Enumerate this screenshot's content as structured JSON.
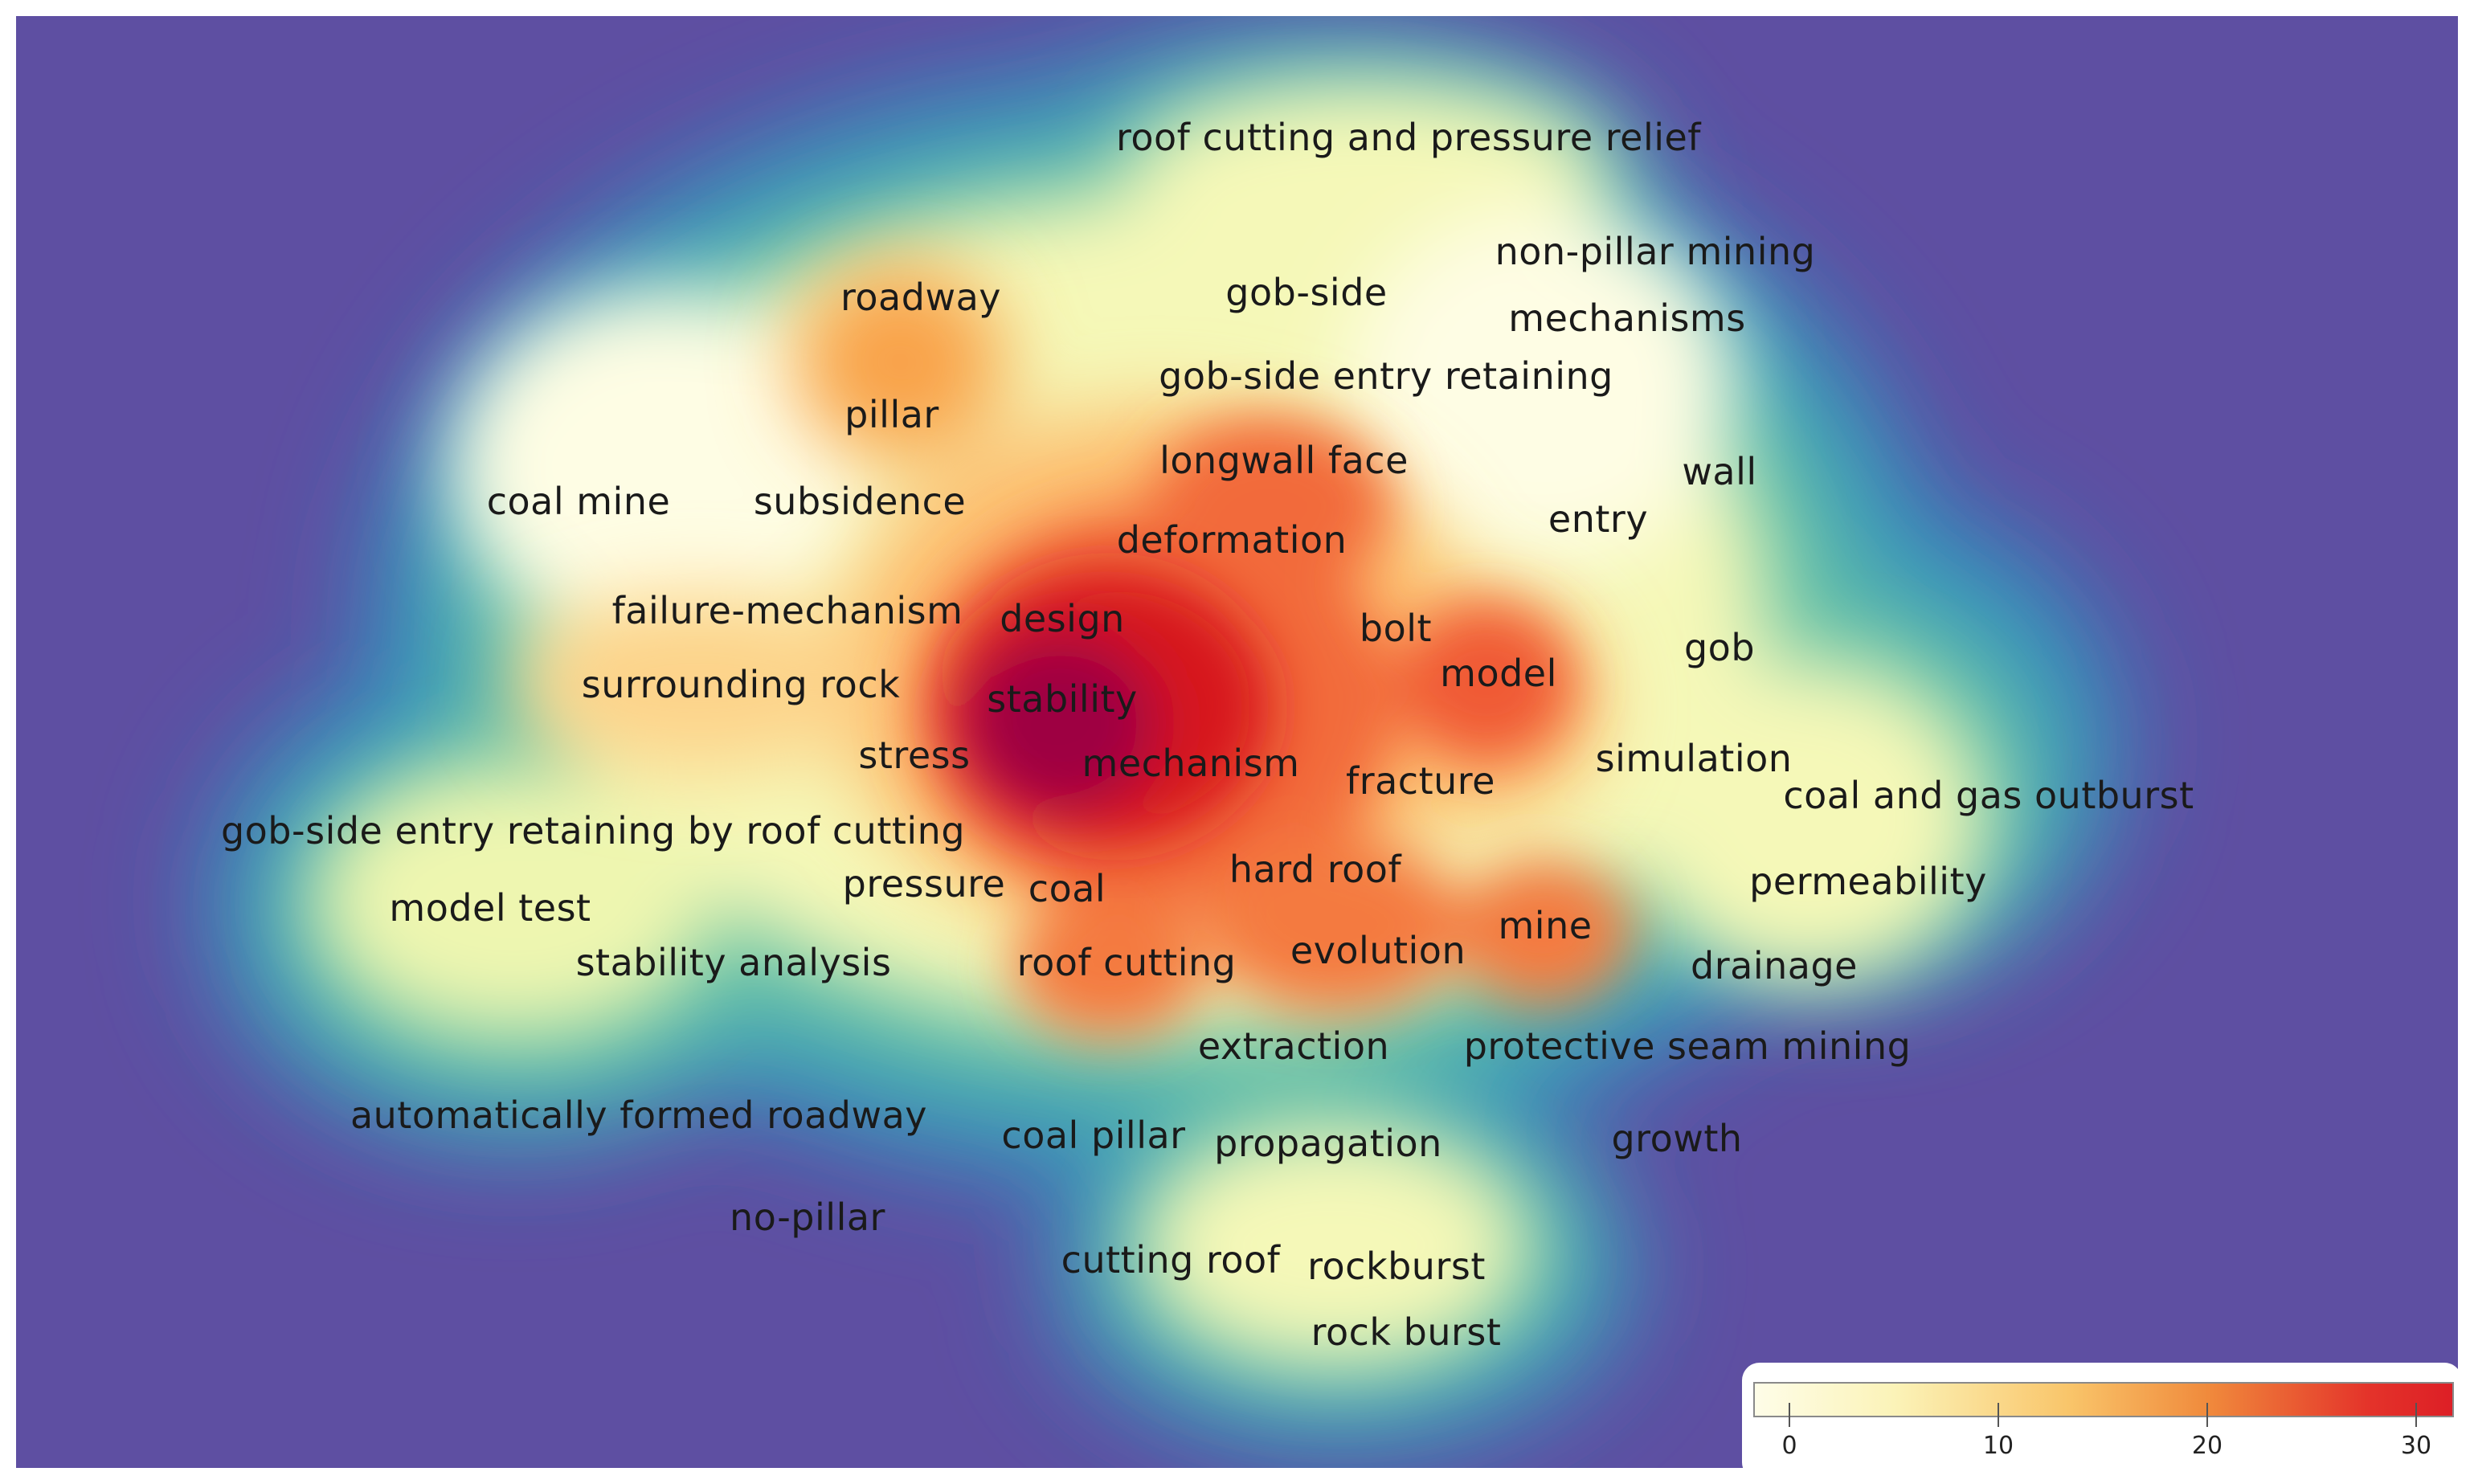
{
  "colors": {
    "background": "#5e4fa2",
    "low": "#fffde0",
    "mid": "#f9a24a",
    "high": "#d7191c",
    "peak": "#9e0142"
  },
  "keywords": [
    "roof cutting and pressure relief",
    "non-pillar mining",
    "roadway",
    "gob-side",
    "mechanisms",
    "gob-side entry retaining",
    "pillar",
    "longwall face",
    "wall",
    "coal mine",
    "subsidence",
    "entry",
    "deformation",
    "failure-mechanism",
    "design",
    "bolt",
    "gob",
    "model",
    "surrounding rock",
    "stability",
    "stress",
    "mechanism",
    "simulation",
    "fracture",
    "coal and gas outburst",
    "gob-side entry retaining by roof cutting",
    "hard roof",
    "pressure",
    "coal",
    "permeability",
    "model test",
    "mine",
    "stability analysis",
    "roof cutting",
    "evolution",
    "drainage",
    "extraction",
    "protective seam mining",
    "automatically formed roadway",
    "coal pillar",
    "propagation",
    "growth",
    "no-pillar",
    "cutting roof",
    "rockburst",
    "rock burst"
  ],
  "legend": {
    "ticks": [
      "0",
      "10",
      "20",
      "30"
    ]
  }
}
